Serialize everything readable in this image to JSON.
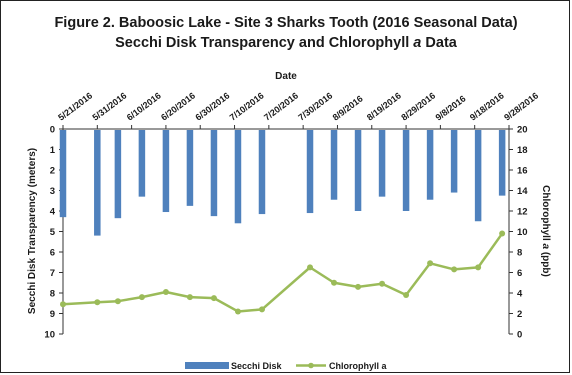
{
  "chart_data": {
    "type": "bar+line",
    "title_line1": "Figure 2. Baboosic Lake - Site 3 Sharks Tooth (2016 Seasonal Data)",
    "title_line2_main": "Secchi Disk Transparency and Chlorophyll ",
    "title_line2_italic": "a",
    "title_line2_end": " Data",
    "xlabel": "Date",
    "ylabel_left": "Secchi Disk Transparency (meters)",
    "ylabel_right_main": "Chlorophyll ",
    "ylabel_right_italic": "a",
    "ylabel_right_end": " (ppb)",
    "date_ticks": [
      "5/21/2016",
      "5/31/2016",
      "6/10/2016",
      "6/20/2016",
      "6/30/2016",
      "7/10/2016",
      "7/20/2016",
      "7/30/2016",
      "8/9/2016",
      "8/19/2016",
      "8/29/2016",
      "9/8/2016",
      "9/18/2016",
      "9/28/2016"
    ],
    "x_range_days": [
      0,
      130
    ],
    "ylim_left": [
      0,
      10
    ],
    "ylim_left_inverted": true,
    "yticks_left": [
      "0",
      "1",
      "2",
      "3",
      "4",
      "5",
      "6",
      "7",
      "8",
      "9",
      "10"
    ],
    "ylim_right": [
      0,
      20
    ],
    "yticks_right": [
      "0",
      "2",
      "4",
      "6",
      "8",
      "10",
      "12",
      "14",
      "16",
      "18",
      "20"
    ],
    "gridlines": false,
    "legend_position": "bottom",
    "colors": {
      "secchi": "#4f81bd",
      "chlorophyll": "#9bbb59"
    },
    "series": [
      {
        "name": "Secchi Disk",
        "kind": "bar",
        "points": [
          {
            "x": "5/21/2016",
            "y": 4.3
          },
          {
            "x": "5/31/2016",
            "y": 5.2
          },
          {
            "x": "6/6/2016",
            "y": 4.35
          },
          {
            "x": "6/13/2016",
            "y": 3.3
          },
          {
            "x": "6/20/2016",
            "y": 4.05
          },
          {
            "x": "6/27/2016",
            "y": 3.75
          },
          {
            "x": "7/4/2016",
            "y": 4.25
          },
          {
            "x": "7/11/2016",
            "y": 4.6
          },
          {
            "x": "7/18/2016",
            "y": 4.15
          },
          {
            "x": "8/1/2016",
            "y": 4.1
          },
          {
            "x": "8/8/2016",
            "y": 3.45
          },
          {
            "x": "8/15/2016",
            "y": 4.0
          },
          {
            "x": "8/22/2016",
            "y": 3.3
          },
          {
            "x": "8/29/2016",
            "y": 4.0
          },
          {
            "x": "9/5/2016",
            "y": 3.45
          },
          {
            "x": "9/12/2016",
            "y": 3.1
          },
          {
            "x": "9/19/2016",
            "y": 4.5
          },
          {
            "x": "9/26/2016",
            "y": 3.25
          }
        ]
      },
      {
        "name": "Chlorophyll a",
        "kind": "line",
        "points": [
          {
            "x": "5/21/2016",
            "y": 2.9
          },
          {
            "x": "5/31/2016",
            "y": 3.1
          },
          {
            "x": "6/6/2016",
            "y": 3.2
          },
          {
            "x": "6/13/2016",
            "y": 3.6
          },
          {
            "x": "6/20/2016",
            "y": 4.1
          },
          {
            "x": "6/27/2016",
            "y": 3.6
          },
          {
            "x": "7/4/2016",
            "y": 3.5
          },
          {
            "x": "7/11/2016",
            "y": 2.2
          },
          {
            "x": "7/18/2016",
            "y": 2.4
          },
          {
            "x": "8/1/2016",
            "y": 6.5
          },
          {
            "x": "8/8/2016",
            "y": 5.0
          },
          {
            "x": "8/15/2016",
            "y": 4.6
          },
          {
            "x": "8/22/2016",
            "y": 4.9
          },
          {
            "x": "8/29/2016",
            "y": 3.8
          },
          {
            "x": "9/5/2016",
            "y": 6.9
          },
          {
            "x": "9/12/2016",
            "y": 6.3
          },
          {
            "x": "9/19/2016",
            "y": 6.5
          },
          {
            "x": "9/26/2016",
            "y": 9.8
          }
        ]
      }
    ]
  }
}
